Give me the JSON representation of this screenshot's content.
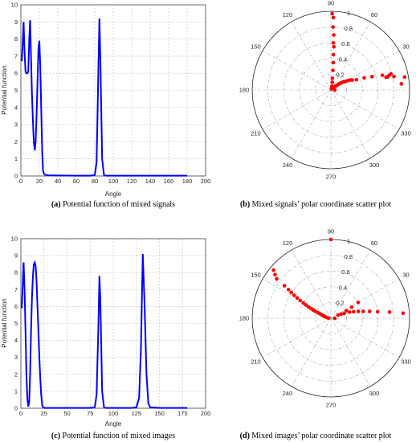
{
  "chart_data": [
    {
      "type": "line",
      "panel": "a",
      "caption_letter": "(a)",
      "caption_text": " Potential function of mixed signals",
      "xlabel": "Angle",
      "ylabel": "Potential function",
      "xlim": [
        0,
        200
      ],
      "ylim": [
        0,
        10
      ],
      "xticks": [
        0,
        20,
        40,
        60,
        80,
        100,
        120,
        140,
        160,
        180,
        200
      ],
      "yticks": [
        0,
        1,
        2,
        3,
        4,
        5,
        6,
        7,
        8,
        9,
        10
      ],
      "grid": true,
      "series": [
        {
          "color": "#0000ff",
          "x": [
            1,
            2,
            3,
            4,
            5,
            6,
            7,
            8,
            9,
            10,
            11,
            12,
            13,
            14,
            15,
            16,
            17,
            18,
            19,
            20,
            21,
            22,
            23,
            24,
            25,
            26,
            27,
            28,
            30,
            40,
            60,
            75,
            80,
            82,
            84,
            85,
            86,
            88,
            90,
            92,
            95,
            100,
            120,
            140,
            160,
            180
          ],
          "y": [
            6.7,
            7.8,
            9.0,
            7.2,
            6.1,
            6.0,
            6.0,
            6.1,
            8.0,
            9.1,
            7.0,
            4.8,
            3.2,
            2.0,
            1.5,
            2.0,
            3.5,
            5.5,
            7.5,
            7.9,
            6.5,
            4.0,
            1.5,
            0.3,
            0.12,
            0.08,
            0.06,
            0.05,
            0.04,
            0.03,
            0.02,
            0.02,
            0.05,
            0.8,
            6.5,
            9.2,
            7.0,
            1.0,
            0.05,
            0.02,
            0.02,
            0.02,
            0.02,
            0.02,
            0.02,
            0.02
          ]
        }
      ]
    },
    {
      "type": "scatter",
      "panel": "b",
      "caption_letter": "(b)",
      "caption_text": " Mixed signals’ polar coordinate scatter plot",
      "coordinate": "polar",
      "theta_ticks": [
        0,
        30,
        60,
        90,
        120,
        150,
        180,
        210,
        240,
        270,
        300,
        330
      ],
      "r_ticks": [
        "0.2",
        "0.4",
        "0.6",
        "0.8",
        "1"
      ],
      "rlim": [
        0,
        1
      ],
      "grid": true,
      "points_theta_deg": [
        0,
        5,
        10,
        12,
        13,
        13,
        14,
        15,
        16,
        18,
        20,
        22,
        25,
        27,
        29,
        30,
        32,
        34,
        35,
        36,
        37,
        38,
        40,
        42,
        44,
        48,
        55,
        60,
        65,
        70,
        75,
        80,
        83,
        84,
        85,
        86,
        86,
        87,
        87,
        88,
        88,
        89
      ],
      "points_r": [
        0.05,
        0.9,
        0.95,
        0.82,
        0.74,
        0.72,
        0.76,
        0.79,
        0.68,
        0.55,
        0.45,
        0.35,
        0.3,
        0.28,
        0.25,
        0.22,
        0.2,
        0.18,
        0.16,
        0.14,
        0.12,
        0.1,
        0.08,
        0.06,
        0.05,
        0.03,
        0.02,
        0.02,
        0.02,
        0.03,
        0.05,
        0.1,
        0.15,
        0.25,
        0.35,
        0.45,
        0.55,
        0.6,
        0.7,
        0.8,
        0.92,
        0.97
      ],
      "color": "#ff0000"
    },
    {
      "type": "line",
      "panel": "c",
      "caption_letter": "(c)",
      "caption_text": " Potential function of mixed images",
      "xlabel": "Angle",
      "ylabel": "Potential function",
      "xlim": [
        0,
        200
      ],
      "ylim": [
        0,
        10
      ],
      "xticks": [
        0,
        25,
        50,
        75,
        100,
        125,
        150,
        175,
        200
      ],
      "xtick_labels": [
        "0",
        "25",
        "",
        "",
        "",
        "",
        "",
        "",
        ""
      ],
      "xtick_labels_printed": [
        "0",
        "25",
        "50",
        "75",
        "100",
        "125",
        "150",
        "175",
        "200"
      ],
      "yticks": [
        0,
        1,
        2,
        3,
        4,
        5,
        6,
        7,
        8,
        9,
        10
      ],
      "grid": true,
      "series": [
        {
          "color": "#0000ff",
          "x": [
            1,
            2,
            3,
            4,
            5,
            6,
            7,
            8,
            9,
            10,
            11,
            12,
            13,
            14,
            15,
            16,
            17,
            18,
            19,
            20,
            21,
            22,
            23,
            24,
            25,
            26,
            27,
            30,
            40,
            60,
            75,
            80,
            82,
            84,
            85,
            86,
            88,
            90,
            92,
            95,
            100,
            120,
            125,
            128,
            130,
            131,
            132,
            134,
            136,
            138,
            140,
            150,
            160,
            180
          ],
          "y": [
            5.9,
            7.3,
            8.6,
            7.0,
            4.5,
            2.0,
            0.6,
            0.1,
            0.4,
            2.0,
            4.5,
            6.5,
            7.8,
            8.5,
            8.6,
            8.4,
            7.5,
            6.0,
            4.5,
            3.0,
            1.8,
            0.8,
            0.2,
            0.05,
            0.03,
            0.02,
            0.02,
            0.02,
            0.02,
            0.02,
            0.02,
            0.05,
            0.8,
            5.0,
            7.8,
            6.5,
            1.0,
            0.05,
            0.02,
            0.02,
            0.02,
            0.02,
            0.05,
            0.6,
            3.5,
            6.5,
            9.1,
            6.0,
            2.0,
            0.3,
            0.05,
            0.02,
            0.02,
            0.02
          ]
        }
      ]
    },
    {
      "type": "scatter",
      "panel": "d",
      "caption_letter": "(d)",
      "caption_text": " Mixed images’ polar coordinate scatter plot",
      "coordinate": "polar",
      "theta_ticks": [
        0,
        30,
        60,
        90,
        120,
        150,
        180,
        210,
        240,
        270,
        300,
        330
      ],
      "r_ticks": [
        "0.2",
        "0.4",
        "0.6",
        "0.8",
        "1"
      ],
      "rlim": [
        0,
        1
      ],
      "grid": true,
      "points_theta_deg": [
        0,
        4,
        6,
        8,
        10,
        12,
        14,
        16,
        18,
        20,
        22,
        24,
        26,
        28,
        30,
        90,
        140,
        142,
        144,
        145,
        146,
        147,
        148,
        149,
        150,
        151,
        152,
        153,
        154,
        155,
        156,
        157,
        158,
        160,
        162,
        165,
        170,
        175
      ],
      "points_r": [
        0.05,
        0.92,
        0.75,
        0.6,
        0.5,
        0.42,
        0.36,
        0.3,
        0.25,
        0.18,
        0.14,
        0.1,
        0.22,
        0.3,
        0.4,
        1.0,
        0.95,
        0.9,
        0.85,
        0.72,
        0.65,
        0.6,
        0.55,
        0.5,
        0.45,
        0.4,
        0.36,
        0.32,
        0.28,
        0.25,
        0.22,
        0.18,
        0.15,
        0.12,
        0.1,
        0.08,
        0.05,
        0.03
      ],
      "color": "#ff0000"
    }
  ]
}
